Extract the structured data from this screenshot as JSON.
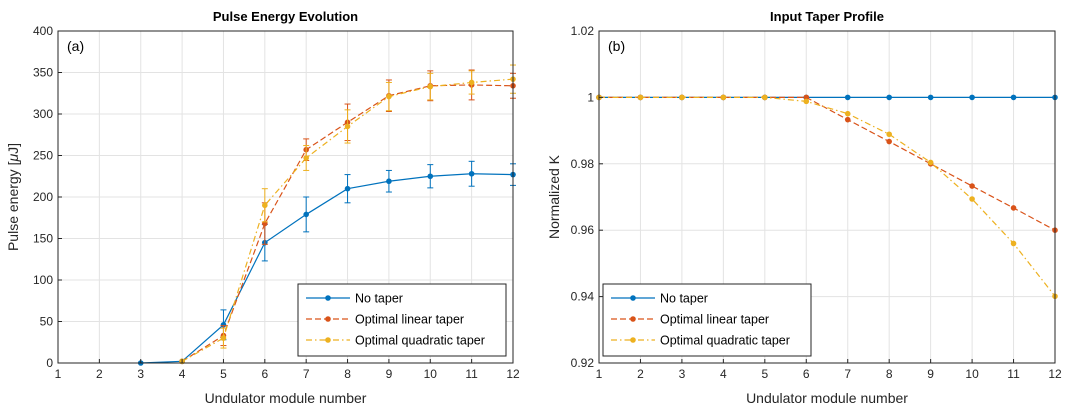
{
  "chart_data": [
    {
      "type": "line",
      "title": "Pulse Energy Evolution",
      "panel_label": "(a)",
      "xlabel": "Undulator module number",
      "ylabel_parts": [
        "Pulse energy [",
        "μ",
        "J]"
      ],
      "xlim": [
        1,
        12
      ],
      "ylim": [
        0,
        400
      ],
      "xticks": [
        1,
        2,
        3,
        4,
        5,
        6,
        7,
        8,
        9,
        10,
        11,
        12
      ],
      "yticks": [
        0,
        50,
        100,
        150,
        200,
        250,
        300,
        350,
        400
      ],
      "grid": true,
      "legend_position": "bottom-right",
      "series": [
        {
          "name": "No taper",
          "color": "#0072BD",
          "dash": "solid",
          "x": [
            3,
            4,
            5,
            6,
            7,
            8,
            9,
            10,
            11,
            12
          ],
          "y": [
            0,
            2,
            46,
            145,
            179,
            210,
            219,
            225,
            228,
            227
          ],
          "err": [
            0,
            0,
            18,
            22,
            21,
            17,
            13,
            14,
            15,
            13
          ]
        },
        {
          "name": "Optimal linear taper",
          "color": "#D95319",
          "dash": "dash",
          "x": [
            4,
            5,
            6,
            7,
            8,
            9,
            10,
            11,
            12
          ],
          "y": [
            2,
            33,
            168,
            257,
            290,
            322,
            334,
            335,
            334
          ],
          "err": [
            0,
            12,
            25,
            13,
            22,
            19,
            18,
            18,
            15
          ]
        },
        {
          "name": "Optimal quadratic taper",
          "color": "#EDB120",
          "dash": "dashdot",
          "x": [
            4,
            5,
            6,
            7,
            8,
            9,
            10,
            11,
            12
          ],
          "y": [
            2,
            30,
            190,
            247,
            285,
            321,
            333,
            338,
            342
          ],
          "err": [
            0,
            12,
            20,
            15,
            20,
            17,
            16,
            14,
            17
          ]
        }
      ]
    },
    {
      "type": "line",
      "title": "Input Taper Profile",
      "panel_label": "(b)",
      "xlabel": "Undulator module number",
      "ylabel_parts": [
        "Normalized K"
      ],
      "xlim": [
        1,
        12
      ],
      "ylim": [
        0.92,
        1.02
      ],
      "xticks": [
        1,
        2,
        3,
        4,
        5,
        6,
        7,
        8,
        9,
        10,
        11,
        12
      ],
      "yticks": [
        0.92,
        0.94,
        0.96,
        0.98,
        1,
        1.02
      ],
      "ytick_labels": [
        "0.92",
        "0.94",
        "0.96",
        "0.98",
        "1",
        "1.02"
      ],
      "grid": true,
      "legend_position": "bottom-left",
      "series": [
        {
          "name": "No taper",
          "color": "#0072BD",
          "dash": "solid",
          "x": [
            1,
            2,
            3,
            4,
            5,
            6,
            7,
            8,
            9,
            10,
            11,
            12
          ],
          "y": [
            1,
            1,
            1,
            1,
            1,
            1,
            1,
            1,
            1,
            1,
            1,
            1
          ]
        },
        {
          "name": "Optimal linear taper",
          "color": "#D95319",
          "dash": "dash",
          "x": [
            1,
            2,
            3,
            4,
            5,
            6,
            7,
            8,
            9,
            10,
            11,
            12
          ],
          "y": [
            1,
            1,
            1,
            1,
            1,
            1,
            0.9933,
            0.9867,
            0.98,
            0.9733,
            0.9667,
            0.96
          ]
        },
        {
          "name": "Optimal quadratic taper",
          "color": "#EDB120",
          "dash": "dashdot",
          "x": [
            1,
            2,
            3,
            4,
            5,
            6,
            7,
            8,
            9,
            10,
            11,
            12
          ],
          "y": [
            1,
            1,
            1,
            1,
            1,
            0.9988,
            0.9951,
            0.9889,
            0.9804,
            0.9694,
            0.956,
            0.9401
          ]
        }
      ]
    }
  ]
}
